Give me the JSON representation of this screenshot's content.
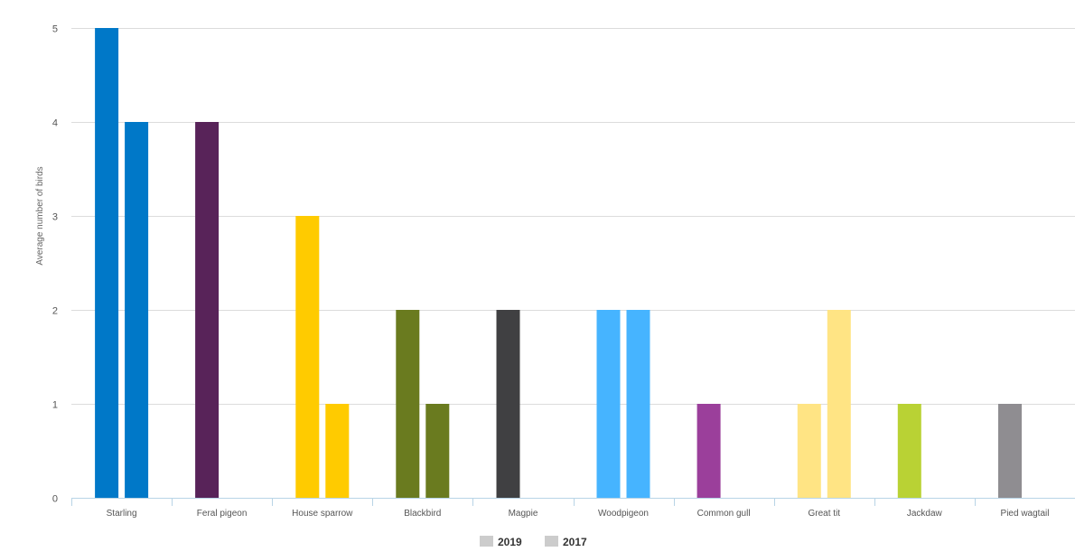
{
  "chart_data": {
    "type": "bar",
    "categories": [
      "Starling",
      "Feral pigeon",
      "House sparrow",
      "Blackbird",
      "Magpie",
      "Woodpigeon",
      "Common gull",
      "Great tit",
      "Jackdaw",
      "Pied wagtail"
    ],
    "series": [
      {
        "name": "2019",
        "values": [
          5,
          4,
          3,
          2,
          2,
          2,
          1,
          1,
          1,
          1
        ]
      },
      {
        "name": "2017",
        "values": [
          4,
          0,
          1,
          1,
          0,
          2,
          0,
          2,
          0,
          0
        ]
      }
    ],
    "category_colors": [
      "#0078c8",
      "#582359",
      "#ffcb00",
      "#6a7b1f",
      "#404042",
      "#46b4ff",
      "#9b3f9b",
      "#ffe484",
      "#b9d234",
      "#8f8d91"
    ],
    "legend_swatch_color": "#cccccc",
    "title": "",
    "xlabel": "",
    "ylabel": "Average number of birds",
    "ylim": [
      0,
      5
    ],
    "yticks": [
      0,
      1,
      2,
      3,
      4,
      5
    ],
    "grid": true,
    "legend_position": "bottom-center"
  }
}
